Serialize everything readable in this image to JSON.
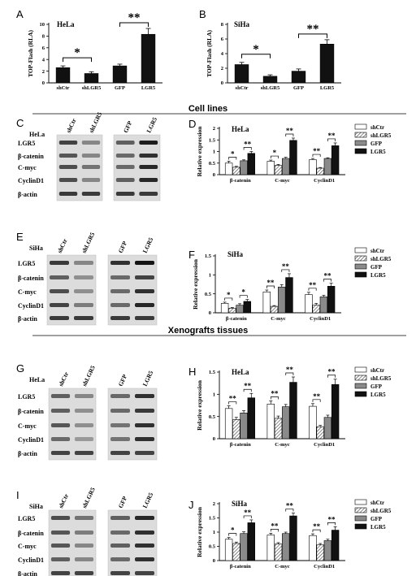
{
  "sections": [
    "Cell lines",
    "Xenografts tissues"
  ],
  "colors": {
    "ink": "#000000",
    "white": "#ffffff",
    "hatch": "#6b6b6b",
    "grey": "#8a8a8a",
    "black": "#111111",
    "blot_bg": "#dcdcdc",
    "band": "#2a2a2a"
  },
  "legend": [
    "shCtr",
    "shLGR5",
    "GFP",
    "LGR5"
  ],
  "blots": [
    {
      "letter": "C",
      "cell": "HeLa",
      "cols_left": [
        "shCtr",
        "shLGR5"
      ],
      "cols_right": [
        "GFP",
        "LGR5"
      ],
      "rows": [
        "LGR5",
        "β-catenin",
        "C-myc",
        "CyclinD1",
        "β-actin"
      ]
    },
    {
      "letter": "E",
      "cell": "SiHa",
      "cols_left": [
        "shCtr",
        "shLGR5"
      ],
      "cols_right": [
        "GFP",
        "LGR5"
      ],
      "rows": [
        "LGR5",
        "β-catenin",
        "C-myc",
        "CyclinD1",
        "β-actin"
      ]
    },
    {
      "letter": "G",
      "cell": "HeLa",
      "cols_left": [
        "shCtr",
        "shLGR5"
      ],
      "cols_right": [
        "GFP",
        "LGR5"
      ],
      "rows": [
        "LGR5",
        "β-catenin",
        "C-myc",
        "CyclinD1",
        "β-actin"
      ]
    },
    {
      "letter": "I",
      "cell": "SiHa",
      "cols_left": [
        "shCtr",
        "shLGR5"
      ],
      "cols_right": [
        "GFP",
        "LGR5"
      ],
      "rows": [
        "LGR5",
        "β-catenin",
        "C-myc",
        "CyclinD1",
        "β-actin"
      ]
    }
  ],
  "chart_data": [
    {
      "letter": "A",
      "type": "bar",
      "title": "HeLa",
      "ylabel": "TOP-Flash (RLA)",
      "xlabel": "",
      "categories": [
        "shCtr",
        "shLGR5",
        "GFP",
        "LGR5"
      ],
      "ylim": [
        0,
        10
      ],
      "yticks": [
        0,
        2,
        4,
        6,
        8,
        10
      ],
      "values": [
        2.6,
        1.6,
        2.9,
        8.3
      ],
      "errors": [
        0.3,
        0.3,
        0.3,
        1.0
      ],
      "significance": [
        {
          "pair": [
            0,
            1
          ],
          "label": "*"
        },
        {
          "pair": [
            2,
            3
          ],
          "label": "**"
        }
      ]
    },
    {
      "letter": "B",
      "type": "bar",
      "title": "SiHa",
      "ylabel": "TOP-Flash (RLA)",
      "xlabel": "",
      "categories": [
        "shCtr",
        "shLGR5",
        "GFP",
        "LGR5"
      ],
      "ylim": [
        0,
        8
      ],
      "yticks": [
        0,
        2,
        4,
        6,
        8
      ],
      "values": [
        2.5,
        0.9,
        1.6,
        5.3
      ],
      "errors": [
        0.3,
        0.2,
        0.3,
        0.6
      ],
      "significance": [
        {
          "pair": [
            0,
            1
          ],
          "label": "*"
        },
        {
          "pair": [
            2,
            3
          ],
          "label": "**"
        }
      ]
    },
    {
      "letter": "D",
      "type": "bar",
      "title": "HeLa",
      "ylabel": "Relative expression",
      "xlabel": "",
      "categories": [
        "β-catenin",
        "C-myc",
        "CyclinD1"
      ],
      "ylim": [
        0,
        2.0
      ],
      "yticks": [
        0.0,
        0.5,
        1.0,
        1.5,
        2.0
      ],
      "series": [
        {
          "name": "shCtr",
          "values": [
            0.5,
            0.58,
            0.65
          ],
          "errors": [
            0.08,
            0.05,
            0.05
          ]
        },
        {
          "name": "shLGR5",
          "values": [
            0.32,
            0.4,
            0.28
          ],
          "errors": [
            0.04,
            0.04,
            0.03
          ]
        },
        {
          "name": "GFP",
          "values": [
            0.6,
            0.7,
            0.7
          ],
          "errors": [
            0.04,
            0.05,
            0.03
          ]
        },
        {
          "name": "LGR5",
          "values": [
            0.92,
            1.48,
            1.25
          ],
          "errors": [
            0.08,
            0.1,
            0.12
          ]
        }
      ],
      "significance": [
        "*",
        "**",
        "*",
        "**",
        "**",
        "**"
      ]
    },
    {
      "letter": "F",
      "type": "bar",
      "title": "SiHa",
      "ylabel": "Relative expression",
      "xlabel": "",
      "categories": [
        "β-catenin",
        "C-myc",
        "CyclinD1"
      ],
      "ylim": [
        0,
        1.5
      ],
      "yticks": [
        0.0,
        0.5,
        1.0,
        1.5
      ],
      "series": [
        {
          "name": "shCtr",
          "values": [
            0.25,
            0.55,
            0.48
          ],
          "errors": [
            0.03,
            0.05,
            0.06
          ]
        },
        {
          "name": "shLGR5",
          "values": [
            0.12,
            0.17,
            0.2
          ],
          "errors": [
            0.02,
            0.02,
            0.05
          ]
        },
        {
          "name": "GFP",
          "values": [
            0.2,
            0.68,
            0.42
          ],
          "errors": [
            0.04,
            0.06,
            0.04
          ]
        },
        {
          "name": "LGR5",
          "values": [
            0.3,
            0.93,
            0.7
          ],
          "errors": [
            0.05,
            0.1,
            0.08
          ]
        }
      ],
      "significance": [
        "*",
        "*",
        "**",
        "**",
        "**",
        "**"
      ]
    },
    {
      "letter": "H",
      "type": "bar",
      "title": "HeLa",
      "ylabel": "Relative expression",
      "xlabel": "",
      "categories": [
        "β-catenin",
        "C-myc",
        "CyclinD1"
      ],
      "ylim": [
        0,
        1.5
      ],
      "yticks": [
        0.0,
        0.5,
        1.0,
        1.5
      ],
      "series": [
        {
          "name": "shCtr",
          "values": [
            0.68,
            0.78,
            0.73
          ],
          "errors": [
            0.06,
            0.07,
            0.06
          ]
        },
        {
          "name": "shLGR5",
          "values": [
            0.43,
            0.46,
            0.27
          ],
          "errors": [
            0.05,
            0.05,
            0.03
          ]
        },
        {
          "name": "GFP",
          "values": [
            0.58,
            0.72,
            0.48
          ],
          "errors": [
            0.05,
            0.05,
            0.05
          ]
        },
        {
          "name": "LGR5",
          "values": [
            0.92,
            1.27,
            1.22
          ],
          "errors": [
            0.1,
            0.12,
            0.12
          ]
        }
      ],
      "significance": [
        "**",
        "**",
        "**",
        "**",
        "**",
        "**"
      ]
    },
    {
      "letter": "J",
      "type": "bar",
      "title": "SiHa",
      "ylabel": "Relative expression",
      "xlabel": "",
      "categories": [
        "β-catenin",
        "C-myc",
        "CyclinD1"
      ],
      "ylim": [
        0,
        2.0
      ],
      "yticks": [
        0.0,
        0.5,
        1.0,
        1.5,
        2.0
      ],
      "series": [
        {
          "name": "shCtr",
          "values": [
            0.75,
            0.9,
            0.88
          ],
          "errors": [
            0.06,
            0.06,
            0.06
          ]
        },
        {
          "name": "shLGR5",
          "values": [
            0.6,
            0.58,
            0.55
          ],
          "errors": [
            0.05,
            0.05,
            0.05
          ]
        },
        {
          "name": "GFP",
          "values": [
            0.95,
            0.95,
            0.7
          ],
          "errors": [
            0.06,
            0.05,
            0.05
          ]
        },
        {
          "name": "LGR5",
          "values": [
            1.33,
            1.57,
            1.07
          ],
          "errors": [
            0.1,
            0.1,
            0.12
          ]
        }
      ],
      "significance": [
        "*",
        "**",
        "**",
        "**",
        "**",
        "**"
      ]
    }
  ]
}
